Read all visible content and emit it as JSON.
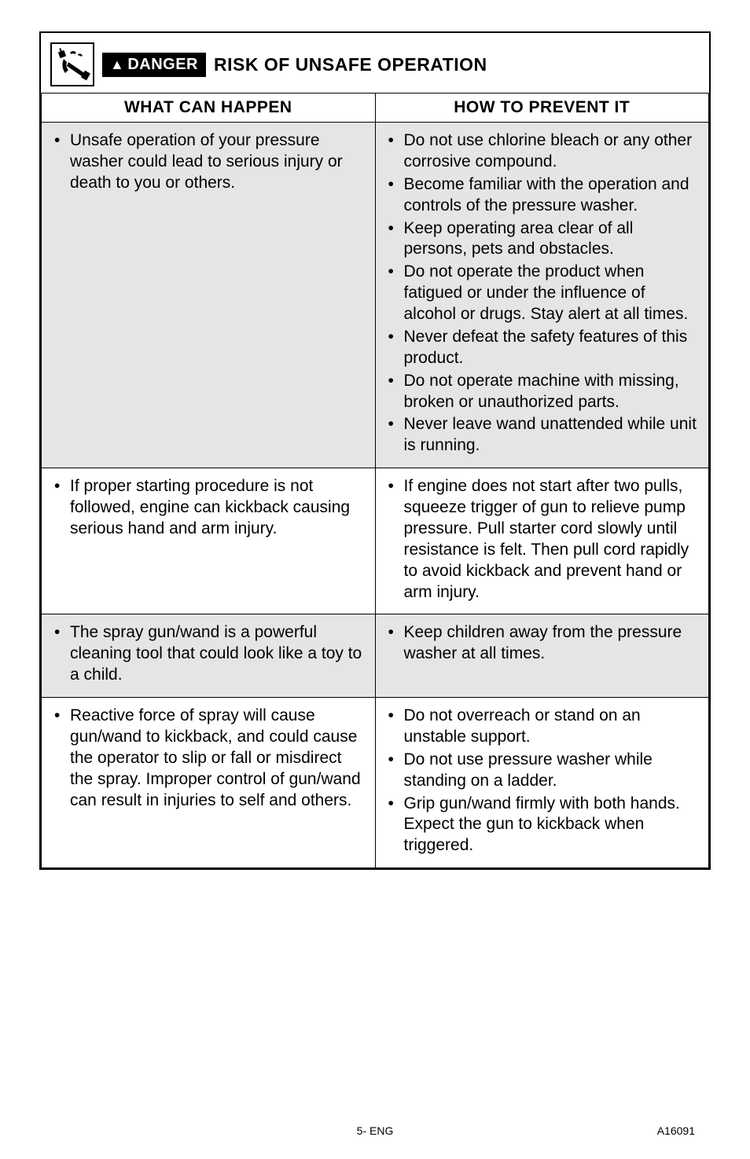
{
  "header": {
    "badge_prefix_symbol": "▲",
    "badge_text": "DANGER",
    "title": "RISK OF UNSAFE OPERATION"
  },
  "columns": {
    "left": "WHAT CAN HAPPEN",
    "right": "HOW TO PREVENT IT"
  },
  "rows": [
    {
      "shaded": true,
      "left": [
        "Unsafe operation of your pressure washer could lead to serious injury or death to you or others."
      ],
      "right": [
        "Do not use chlorine bleach or any other corrosive compound.",
        "Become familiar with the operation and controls of the pressure washer.",
        "Keep operating area clear of all persons, pets and obstacles.",
        "Do not operate the product when fatigued or under the influence of alcohol or drugs. Stay alert at all times.",
        "Never defeat the safety features of this product.",
        "Do not operate machine with missing, broken or unauthorized parts.",
        "Never leave wand unattended while unit is running."
      ]
    },
    {
      "shaded": false,
      "left": [
        "If proper starting procedure is not followed, engine can kickback causing serious hand and arm injury."
      ],
      "right": [
        "If engine does not start after two pulls, squeeze trigger of gun to relieve pump pressure. Pull starter cord slowly until resistance is felt. Then pull cord rapidly to avoid kickback and prevent hand or arm injury."
      ]
    },
    {
      "shaded": true,
      "left": [
        "The spray gun/wand is a powerful cleaning tool that could look like a toy to a child."
      ],
      "right": [
        "Keep children away from the pressure washer at all times."
      ]
    },
    {
      "shaded": false,
      "left": [
        "Reactive force of spray will cause gun/wand to kickback, and could cause the operator to slip or fall or misdirect the spray. Improper control of gun/wand can result in injuries to self and others."
      ],
      "right": [
        "Do not overreach or stand on an unstable support.",
        "Do not use pressure washer while standing on a ladder.",
        "Grip gun/wand firmly with both hands. Expect the gun to kickback when triggered."
      ]
    }
  ],
  "footer": {
    "center": "5- ENG",
    "right": "A16091"
  },
  "colors": {
    "shaded_bg": "#e5e5e5",
    "border": "#000000",
    "text": "#000000",
    "badge_bg": "#000000",
    "badge_fg": "#ffffff"
  }
}
